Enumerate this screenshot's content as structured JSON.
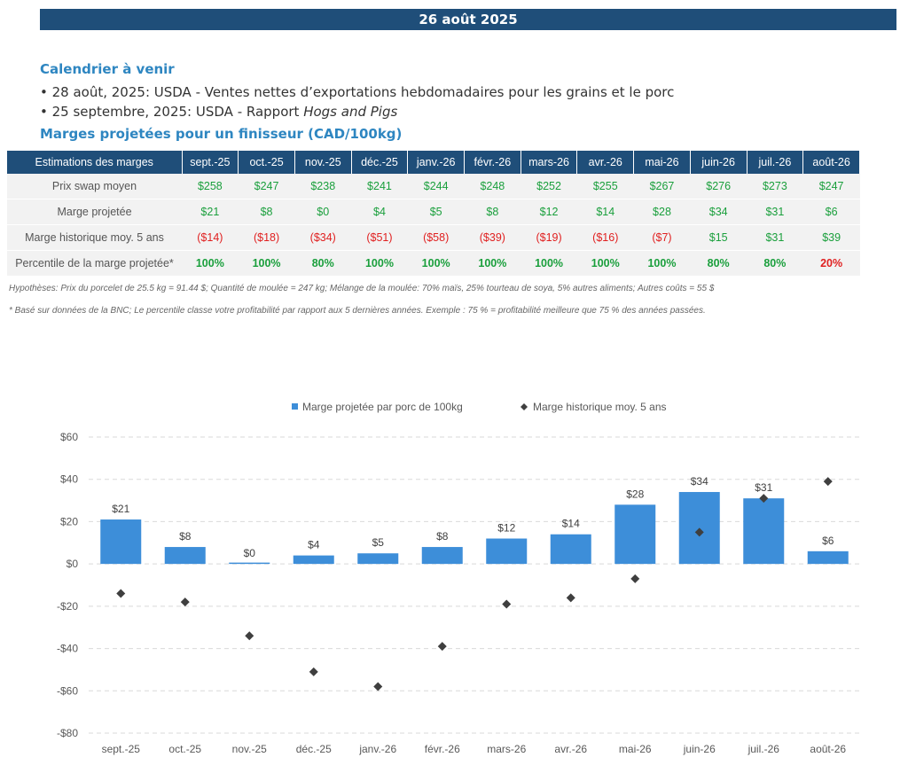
{
  "header": {
    "date": "26 août 2025"
  },
  "calendar": {
    "title": "Calendrier à venir",
    "items": [
      {
        "text": "• 28 août, 2025: USDA - Ventes nettes d’exportations hebdomadaires pour les grains et le porc",
        "italic": ""
      },
      {
        "text": "• 25 septembre, 2025: USDA - Rapport ",
        "italic": "Hogs and Pigs"
      }
    ]
  },
  "margins_table": {
    "title": "Marges projetées pour un finisseur (CAD/100kg)",
    "header_label": "Estimations des marges",
    "months": [
      "sept.-25",
      "oct.-25",
      "nov.-25",
      "déc.-25",
      "janv.-26",
      "févr.-26",
      "mars-26",
      "avr.-26",
      "mai-26",
      "juin-26",
      "juil.-26",
      "août-26"
    ],
    "rows": [
      {
        "label": "Prix swap moyen",
        "values": [
          "$258",
          "$247",
          "$238",
          "$241",
          "$244",
          "$248",
          "$252",
          "$255",
          "$267",
          "$276",
          "$273",
          "$247"
        ],
        "bold": false
      },
      {
        "label": "Marge projetée",
        "values": [
          "$21",
          "$8",
          "$0",
          "$4",
          "$5",
          "$8",
          "$12",
          "$14",
          "$28",
          "$34",
          "$31",
          "$6"
        ],
        "bold": false
      },
      {
        "label": "Marge historique moy. 5 ans",
        "values": [
          "($14)",
          "($18)",
          "($34)",
          "($51)",
          "($58)",
          "($39)",
          "($19)",
          "($16)",
          "($7)",
          "$15",
          "$31",
          "$39"
        ],
        "bold": false
      },
      {
        "label": "Percentile de la marge projetée*",
        "values": [
          "100%",
          "100%",
          "80%",
          "100%",
          "100%",
          "100%",
          "100%",
          "100%",
          "100%",
          "80%",
          "80%",
          "20%"
        ],
        "bold": true,
        "neg_flags": [
          false,
          false,
          false,
          false,
          false,
          false,
          false,
          false,
          false,
          false,
          false,
          true
        ]
      }
    ]
  },
  "notes": {
    "assumptions": "Hypothèses: Prix du porcelet de 25.5 kg = 91.44 $; Quantité de moulée = 247 kg; Mélange de la moulée: 70% maïs, 25% tourteau de soya, 5% autres aliments; Autres coûts = 55 $",
    "footnote": "* Basé sur données de la BNC; Le percentile classe votre profitabilité par rapport aux 5 dernières années. Exemple : 75 % = profitabilité meilleure que 75 % des années passées."
  },
  "colors": {
    "navy": "#1f4e79",
    "bar": "#3d8ed9",
    "marker": "#3f3f3f",
    "positive": "#1a9f3c",
    "negative": "#e02020"
  },
  "chart_data": {
    "type": "bar",
    "categories": [
      "sept.-25",
      "oct.-25",
      "nov.-25",
      "déc.-25",
      "janv.-26",
      "févr.-26",
      "mars-26",
      "avr.-26",
      "mai-26",
      "juin-26",
      "juil.-26",
      "août-26"
    ],
    "series": [
      {
        "name": "Marge projetée par porc de 100kg",
        "type": "bar",
        "values": [
          21,
          8,
          0,
          4,
          5,
          8,
          12,
          14,
          28,
          34,
          31,
          6
        ],
        "labels": [
          "$21",
          "$8",
          "$0",
          "$4",
          "$5",
          "$8",
          "$12",
          "$14",
          "$28",
          "$34",
          "$31",
          "$6"
        ]
      },
      {
        "name": "Marge historique moy. 5 ans",
        "type": "scatter",
        "marker": "diamond",
        "values": [
          -14,
          -18,
          -34,
          -51,
          -58,
          -39,
          -19,
          -16,
          -7,
          15,
          31,
          39
        ]
      }
    ],
    "ylim": [
      -80,
      60
    ],
    "yticks": [
      60,
      40,
      20,
      0,
      -20,
      -40,
      -60,
      -80
    ],
    "ytick_labels": [
      "$60",
      "$40",
      "$20",
      "$0",
      "-$20",
      "-$40",
      "-$60",
      "-$80"
    ],
    "grid": "horizontal-dashed",
    "legend_position": "top-center"
  }
}
